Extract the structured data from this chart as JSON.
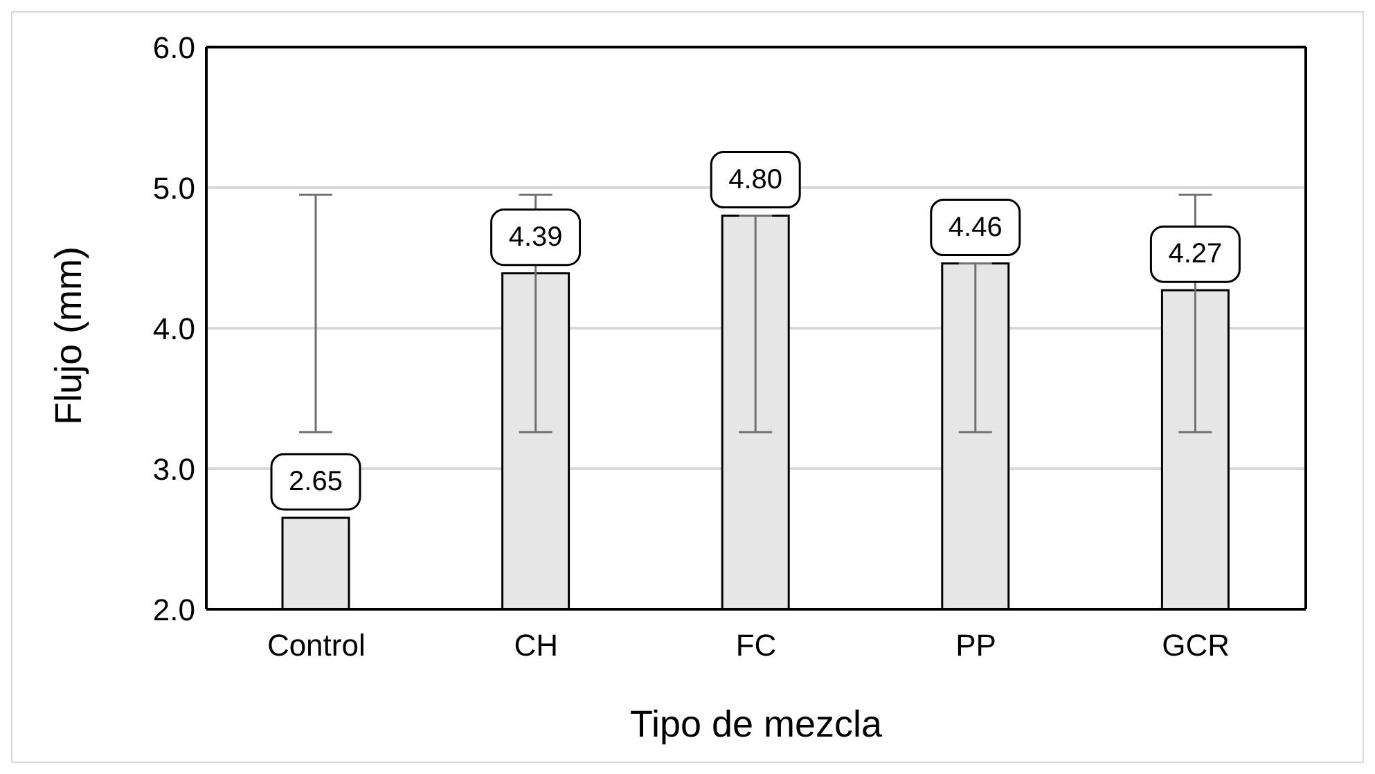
{
  "chart_data": {
    "type": "bar",
    "xlabel": "Tipo de mezcla",
    "ylabel": "Flujo  (mm)",
    "categories": [
      "Control",
      "CH",
      "FC",
      "PP",
      "GCR"
    ],
    "values": [
      2.65,
      4.39,
      4.8,
      4.46,
      4.27
    ],
    "errors": [
      [
        3.26,
        4.95
      ],
      [
        3.26,
        4.95
      ],
      [
        3.26,
        4.8
      ],
      [
        3.26,
        4.46
      ],
      [
        3.26,
        4.95
      ]
    ],
    "value_labels": [
      "2.65",
      "4.39",
      "4.80",
      "4.46",
      "4.27"
    ],
    "color": "#e6e6e6",
    "ylim": [
      2.0,
      6.0
    ],
    "yticks": [
      {
        "value": 2,
        "label": "2.0"
      },
      {
        "value": 3,
        "label": "3.0"
      },
      {
        "value": 4,
        "label": "4.0"
      },
      {
        "value": 5,
        "label": "5.0"
      },
      {
        "value": 6,
        "label": "6.0"
      }
    ],
    "grid": "y",
    "legend": false
  }
}
